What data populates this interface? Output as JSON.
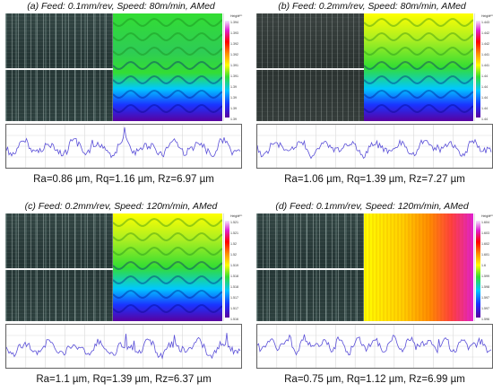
{
  "panels": [
    {
      "title": "(a) Feed: 0.1mm/rev, Speed: 80m/min, AMed",
      "values": "Ra=0.86 µm, Rq=1.16 µm, Rz=6.97 µm",
      "colorbar": {
        "title": "Height",
        "unit": "µm",
        "labels": [
          "1.394",
          "1.393",
          "1.392",
          "1.392",
          "1.391",
          "1.391",
          "1.39",
          "1.39",
          "1.39",
          "1.39"
        ]
      },
      "heatmap_style": "green-band",
      "micro_style": "cool"
    },
    {
      "title": "(b) Feed: 0.2mm/rev, Speed: 80m/min, AMed",
      "values": "Ra=1.06 µm, Rq=1.39 µm, Rz=7.27 µm",
      "colorbar": {
        "title": "Height",
        "unit": "µm",
        "labels": [
          "1.443",
          "1.442",
          "1.442",
          "1.441",
          "1.441",
          "1.44",
          "1.44",
          "1.44",
          "1.44",
          "1.44"
        ]
      },
      "heatmap_style": "wave",
      "micro_style": "warm"
    },
    {
      "title": "(c) Feed: 0.2mm/rev, Speed: 120m/min, AMed",
      "values": "Ra=1.1 µm, Rq=1.39 µm, Rz=6.37 µm",
      "colorbar": {
        "title": "Height",
        "unit": "µm",
        "labels": [
          "1.521",
          "1.521",
          "1.52",
          "1.52",
          "1.519",
          "1.518",
          "1.518",
          "1.517",
          "1.517",
          "1.516"
        ]
      },
      "heatmap_style": "wave",
      "micro_style": "cool"
    },
    {
      "title": "(d) Feed: 0.1mm/rev, Speed: 120m/min, AMed",
      "values": "Ra=0.75 µm, Rq=1.12 µm, Rz=6.99 µm",
      "colorbar": {
        "title": "Height",
        "unit": "µm",
        "labels": [
          "1.604",
          "1.603",
          "1.602",
          "1.601",
          "1.6",
          "1.599",
          "1.598",
          "1.597",
          "1.597",
          "1.596"
        ]
      },
      "heatmap_style": "vertical",
      "micro_style": "cool"
    }
  ]
}
